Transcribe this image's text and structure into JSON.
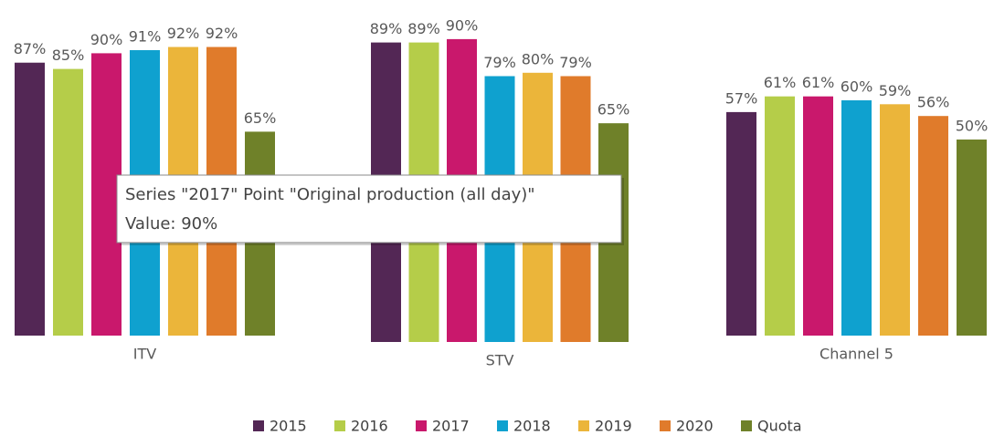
{
  "chart_data": [
    {
      "type": "bar",
      "categories": [
        "ITV"
      ],
      "ylim": [
        0,
        100
      ],
      "series": [
        {
          "name": "2015",
          "color": "#532755",
          "values": [
            87
          ],
          "value_labels": [
            "87%"
          ]
        },
        {
          "name": "2016",
          "color": "#b5cd49",
          "values": [
            85
          ],
          "value_labels": [
            "85%"
          ]
        },
        {
          "name": "2017",
          "color": "#c9186c",
          "values": [
            90
          ],
          "value_labels": [
            "90%"
          ]
        },
        {
          "name": "2018",
          "color": "#0fa1cf",
          "values": [
            91
          ],
          "value_labels": [
            "91%"
          ]
        },
        {
          "name": "2019",
          "color": "#ebb53a",
          "values": [
            92
          ],
          "value_labels": [
            "92%"
          ]
        },
        {
          "name": "2020",
          "color": "#e07b2b",
          "values": [
            92
          ],
          "value_labels": [
            "92%"
          ]
        },
        {
          "name": "Quota",
          "color": "#6f8129",
          "values": [
            65
          ],
          "value_labels": [
            "65%"
          ]
        }
      ]
    },
    {
      "type": "bar",
      "categories": [
        "STV"
      ],
      "ylim": [
        0,
        100
      ],
      "series": [
        {
          "name": "2015",
          "color": "#532755",
          "values": [
            89
          ],
          "value_labels": [
            "89%"
          ]
        },
        {
          "name": "2016",
          "color": "#b5cd49",
          "values": [
            89
          ],
          "value_labels": [
            "89%"
          ]
        },
        {
          "name": "2017",
          "color": "#c9186c",
          "values": [
            90
          ],
          "value_labels": [
            "90%"
          ]
        },
        {
          "name": "2018",
          "color": "#0fa1cf",
          "values": [
            79
          ],
          "value_labels": [
            "79%"
          ]
        },
        {
          "name": "2019",
          "color": "#ebb53a",
          "values": [
            80
          ],
          "value_labels": [
            "80%"
          ]
        },
        {
          "name": "2020",
          "color": "#e07b2b",
          "values": [
            79
          ],
          "value_labels": [
            "79%"
          ]
        },
        {
          "name": "Quota",
          "color": "#6f8129",
          "values": [
            65
          ],
          "value_labels": [
            "65%"
          ]
        }
      ]
    },
    {
      "type": "bar",
      "categories": [
        "Channel 5"
      ],
      "ylim": [
        0,
        70
      ],
      "series": [
        {
          "name": "2015",
          "color": "#532755",
          "values": [
            57
          ],
          "value_labels": [
            "57%"
          ]
        },
        {
          "name": "2016",
          "color": "#b5cd49",
          "values": [
            61
          ],
          "value_labels": [
            "61%"
          ]
        },
        {
          "name": "2017",
          "color": "#c9186c",
          "values": [
            61
          ],
          "value_labels": [
            "61%"
          ]
        },
        {
          "name": "2018",
          "color": "#0fa1cf",
          "values": [
            60
          ],
          "value_labels": [
            "60%"
          ]
        },
        {
          "name": "2019",
          "color": "#ebb53a",
          "values": [
            59
          ],
          "value_labels": [
            "59%"
          ]
        },
        {
          "name": "2020",
          "color": "#e07b2b",
          "values": [
            56
          ],
          "value_labels": [
            "56%"
          ]
        },
        {
          "name": "Quota",
          "color": "#6f8129",
          "values": [
            50
          ],
          "value_labels": [
            "50%"
          ]
        }
      ]
    }
  ],
  "tooltip": {
    "title": "Series \"2017\" Point \"Original production (all day)\"",
    "value": "Value: 90%"
  }
}
